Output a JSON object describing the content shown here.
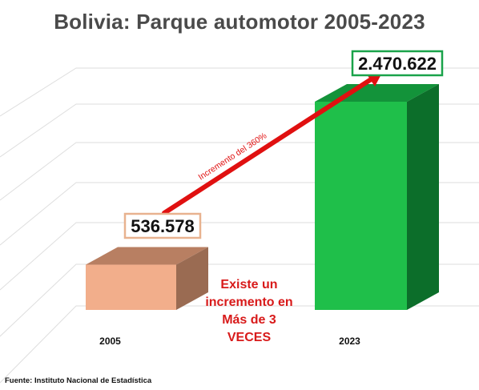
{
  "title": "Bolivia: Parque automotor 2005-2023",
  "source": "Fuente: Instituto Nacional de Estadística",
  "chart_data": {
    "type": "bar",
    "categories": [
      "2005",
      "2023"
    ],
    "values": [
      536578,
      2470622
    ],
    "value_labels": [
      "536.578",
      "2.470.622"
    ],
    "title": "Bolivia: Parque automotor 2005-2023",
    "xlabel": "",
    "ylabel": "",
    "grid": true,
    "annotations": {
      "arrow_label": "Incremento del 360%",
      "callout": [
        "Existe un",
        "incremento en",
        "Más de 3",
        "VECES"
      ]
    }
  },
  "colors": {
    "bar_2005_front": "#f2ae8b",
    "bar_2005_top": "#b87f62",
    "bar_2005_side": "#9a6b52",
    "bar_2023_front": "#1fbf4a",
    "bar_2023_top": "#13933a",
    "bar_2023_side": "#0c6e2a",
    "arrow": "#e01010",
    "callout_text": "#d81a1a",
    "title": "#4a4a4a"
  }
}
